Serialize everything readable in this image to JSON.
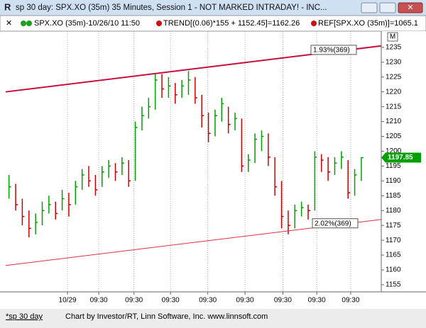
{
  "window": {
    "title": "sp 30 day: SPX.XO (35m) 35 Minutes, Session 1 - NOT MARKED INTRADAY! - INC...",
    "info": [
      "SPX.XO (35m)-10/26/10 11:50",
      "TREND[(0.06)*155 + 1152.45]=1162.26",
      "REF[SPX.XO (35m)]=1065.1"
    ],
    "corner_button": "M",
    "tab": "*sp 30 day",
    "footer": "Chart by Investor/RT, Linn Software, Inc. www.linnsoft.com"
  },
  "chart_data": {
    "type": "ohlc",
    "x": [
      0,
      1,
      2,
      3,
      4,
      5,
      6,
      7,
      8,
      9,
      10,
      11,
      12,
      13,
      14,
      15,
      16,
      17,
      18,
      19,
      20,
      21,
      22,
      23,
      24,
      25,
      26,
      27,
      28,
      29,
      30,
      31,
      32,
      33,
      34,
      35,
      36,
      37,
      38,
      39,
      40,
      41,
      42,
      43,
      44,
      45,
      46,
      47,
      48,
      49,
      50,
      51,
      52,
      53
    ],
    "high": [
      1192,
      1189,
      1184,
      1180,
      1179,
      1183,
      1185,
      1183,
      1187,
      1186,
      1190,
      1194,
      1195,
      1192,
      1195,
      1197,
      1196,
      1198,
      1197,
      1210,
      1215,
      1218,
      1226,
      1226,
      1225,
      1223,
      1224,
      1227,
      1225,
      1219,
      1213,
      1214,
      1218,
      1215,
      1213,
      1211,
      1199,
      1206,
      1207,
      1206,
      1198,
      1190,
      1180,
      1182,
      1183,
      1182,
      1200,
      1199,
      1198,
      1198,
      1200,
      1197,
      1194,
      1198
    ],
    "low": [
      1184,
      1180,
      1175,
      1171,
      1172,
      1175,
      1179,
      1177,
      1180,
      1178,
      1182,
      1187,
      1188,
      1185,
      1188,
      1191,
      1190,
      1192,
      1188,
      1190,
      1207,
      1211,
      1214,
      1218,
      1218,
      1216,
      1218,
      1219,
      1216,
      1208,
      1203,
      1205,
      1210,
      1206,
      1207,
      1193,
      1193,
      1196,
      1200,
      1195,
      1185,
      1174,
      1172,
      1174,
      1178,
      1177,
      1180,
      1193,
      1190,
      1192,
      1194,
      1184,
      1185,
      1190
    ],
    "close": [
      1188,
      1182,
      1178,
      1174,
      1176,
      1180,
      1182,
      1179,
      1184,
      1182,
      1188,
      1192,
      1190,
      1187,
      1193,
      1195,
      1193,
      1196,
      1190,
      1208,
      1212,
      1215,
      1224,
      1221,
      1222,
      1219,
      1222,
      1224,
      1218,
      1212,
      1206,
      1212,
      1216,
      1209,
      1211,
      1195,
      1197,
      1204,
      1205,
      1198,
      1188,
      1178,
      1175,
      1180,
      1181,
      1180,
      1198,
      1197,
      1193,
      1196,
      1198,
      1186,
      1192,
      1197.85
    ],
    "up_color": "#00a000",
    "down_color": "#cc0000",
    "trendlines": [
      {
        "x": [
          -0.5,
          56
        ],
        "y": [
          1220,
          1235.5
        ],
        "color": "#c8103c",
        "width": 2,
        "label": "1.93%(369)"
      },
      {
        "x": [
          -0.5,
          56
        ],
        "y": [
          1161.5,
          1177
        ],
        "color": "#e0303c",
        "width": 1,
        "label": "2.02%(369)"
      }
    ],
    "xlim": [
      -0.5,
      56
    ],
    "xticks": [
      {
        "value": 8.8,
        "label": "10/29"
      },
      {
        "value": 13.5,
        "label": "09:30"
      },
      {
        "value": 18.8,
        "label": "09:30"
      },
      {
        "value": 24.3,
        "label": "09:30"
      },
      {
        "value": 29.9,
        "label": "09:30"
      },
      {
        "value": 35.5,
        "label": "09:30"
      },
      {
        "value": 41.2,
        "label": "09:30"
      },
      {
        "value": 46.3,
        "label": "09:30"
      },
      {
        "value": 51.4,
        "label": "09:30"
      }
    ],
    "ylim": [
      1152.6,
      1239.5
    ],
    "yticks": [
      1155,
      1160,
      1165,
      1170,
      1175,
      1180,
      1185,
      1190,
      1195,
      1200,
      1205,
      1210,
      1215,
      1220,
      1225,
      1230,
      1235
    ],
    "grid": "x"
  }
}
